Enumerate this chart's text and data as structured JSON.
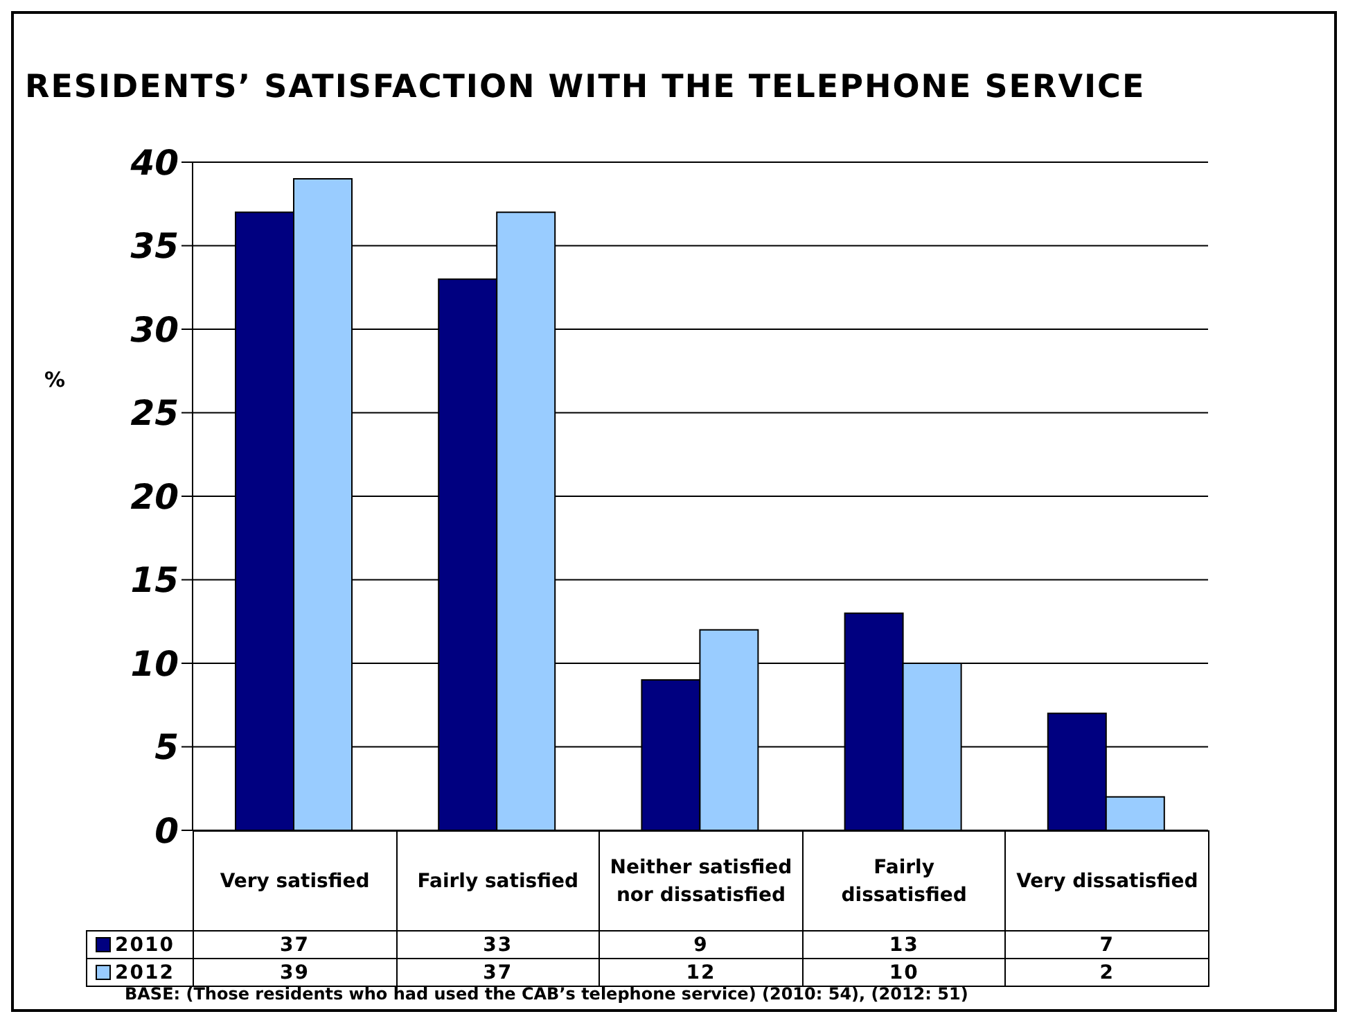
{
  "chart_data": {
    "type": "bar",
    "title": "RESIDENTS’ SATISFACTION WITH THE TELEPHONE SERVICE",
    "ylabel": "%",
    "categories": [
      "Very satisfied",
      "Fairly satisfied",
      "Neither satisfied nor dissatisfied",
      "Fairly dissatisfied",
      "Very dissatisfied"
    ],
    "series": [
      {
        "name": "2010",
        "color": "#000080",
        "values": [
          37,
          33,
          9,
          13,
          7
        ]
      },
      {
        "name": "2012",
        "color": "#99ccff",
        "values": [
          39,
          37,
          12,
          10,
          2
        ]
      }
    ],
    "ylim": [
      0,
      40
    ],
    "yticks": [
      0,
      5,
      10,
      15,
      20,
      25,
      30,
      35,
      40
    ],
    "grid": "y",
    "legend": "bottom",
    "data_labels": true,
    "annotations": [
      "BASE: (Those residents who had used the CAB’s telephone service) (2010: 54), (2012: 51)"
    ]
  }
}
